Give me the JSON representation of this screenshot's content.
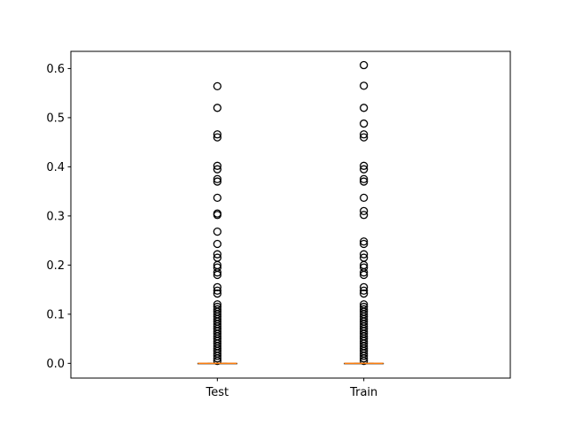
{
  "chart_data": {
    "type": "box",
    "title": "",
    "xlabel": "",
    "ylabel": "",
    "categories": [
      "Test",
      "Train"
    ],
    "ylim": [
      -0.03,
      0.635
    ],
    "yticks": [
      0.0,
      0.1,
      0.2,
      0.3,
      0.4,
      0.5,
      0.6
    ],
    "ytick_labels": [
      "0.0",
      "0.1",
      "0.2",
      "0.3",
      "0.4",
      "0.5",
      "0.6"
    ],
    "grid": false,
    "colors": {
      "median": "#ff7f0e",
      "box": "#000000",
      "flier": "#000000"
    },
    "series": [
      {
        "category": "Test",
        "q1": 0.0,
        "median": 0.0,
        "q3": 0.0,
        "whisker_low": 0.0,
        "whisker_high": 0.0,
        "outliers": [
          0.564,
          0.52,
          0.466,
          0.46,
          0.402,
          0.395,
          0.375,
          0.37,
          0.337,
          0.305,
          0.302,
          0.268,
          0.243,
          0.222,
          0.215,
          0.2,
          0.195,
          0.185,
          0.18,
          0.155,
          0.148,
          0.142,
          0.12,
          0.115,
          0.11,
          0.105,
          0.1,
          0.095,
          0.09,
          0.085,
          0.08,
          0.075,
          0.07,
          0.065,
          0.06,
          0.055,
          0.05,
          0.045,
          0.04,
          0.035,
          0.03,
          0.025,
          0.02,
          0.015,
          0.01,
          0.005
        ]
      },
      {
        "category": "Train",
        "q1": 0.0,
        "median": 0.0,
        "q3": 0.0,
        "whisker_low": 0.0,
        "whisker_high": 0.0,
        "outliers": [
          0.607,
          0.565,
          0.52,
          0.488,
          0.466,
          0.46,
          0.402,
          0.395,
          0.375,
          0.37,
          0.337,
          0.31,
          0.302,
          0.248,
          0.243,
          0.222,
          0.215,
          0.2,
          0.195,
          0.185,
          0.18,
          0.155,
          0.148,
          0.142,
          0.12,
          0.115,
          0.11,
          0.105,
          0.1,
          0.095,
          0.09,
          0.085,
          0.08,
          0.075,
          0.07,
          0.065,
          0.06,
          0.055,
          0.05,
          0.045,
          0.04,
          0.035,
          0.03,
          0.025,
          0.02,
          0.015,
          0.01,
          0.005
        ]
      }
    ]
  }
}
